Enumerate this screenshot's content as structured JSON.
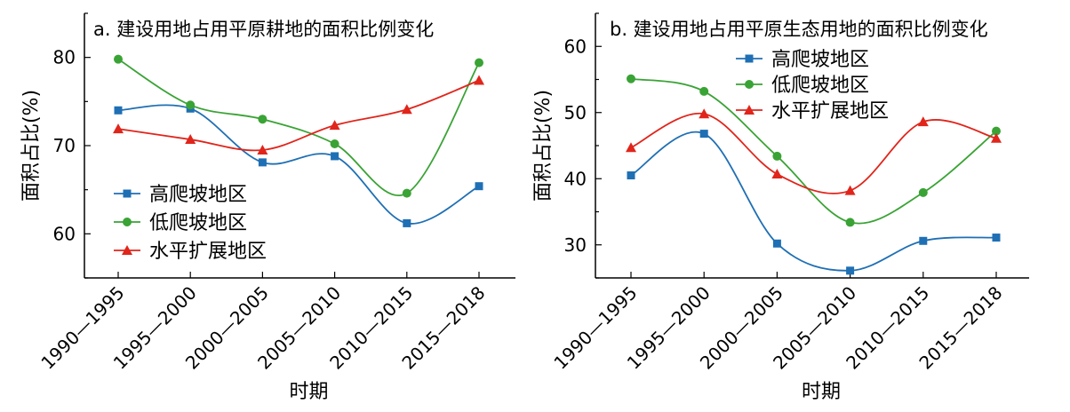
{
  "chart_data": [
    {
      "type": "line",
      "title": "a. 建设用地占用平原耕地的面积比例变化",
      "xlabel": "时期",
      "ylabel": "面积占比(%)",
      "categories": [
        "1990—1995",
        "1995—2000",
        "2000—2005",
        "2005—2010",
        "2010—2015",
        "2015—2018"
      ],
      "ylim": [
        55,
        85
      ],
      "yticks": [
        60,
        70,
        80
      ],
      "smooth": true,
      "legend_position": "center-left",
      "series": [
        {
          "name": "高爬坡地区",
          "color": "#1f6fb4",
          "marker": "square",
          "values": [
            74.0,
            74.2,
            68.1,
            68.8,
            61.2,
            65.4
          ]
        },
        {
          "name": "低爬坡地区",
          "color": "#3aa335",
          "marker": "circle",
          "values": [
            79.8,
            74.6,
            73.0,
            70.2,
            64.6,
            79.4
          ]
        },
        {
          "name": "水平扩展地区",
          "color": "#e0251b",
          "marker": "triangle",
          "values": [
            71.9,
            70.7,
            69.5,
            72.3,
            74.1,
            77.4
          ]
        }
      ]
    },
    {
      "type": "line",
      "title": "b. 建设用地占用平原生态用地的面积比例变化",
      "xlabel": "时期",
      "ylabel": "面积占比(%)",
      "categories": [
        "1990—1995",
        "1995—2000",
        "2000—2005",
        "2005—2010",
        "2010—2015",
        "2015—2018"
      ],
      "ylim": [
        25,
        65
      ],
      "yticks": [
        30,
        40,
        50,
        60
      ],
      "smooth": true,
      "legend_position": "top-center",
      "series": [
        {
          "name": "高爬坡地区",
          "color": "#1f6fb4",
          "marker": "square",
          "values": [
            40.5,
            46.8,
            30.2,
            26.1,
            30.6,
            31.1
          ]
        },
        {
          "name": "低爬坡地区",
          "color": "#3aa335",
          "marker": "circle",
          "values": [
            55.1,
            53.2,
            43.4,
            33.4,
            37.9,
            47.2
          ]
        },
        {
          "name": "水平扩展地区",
          "color": "#e0251b",
          "marker": "triangle",
          "values": [
            44.7,
            49.8,
            40.7,
            38.2,
            48.6,
            46.1
          ]
        }
      ]
    }
  ]
}
